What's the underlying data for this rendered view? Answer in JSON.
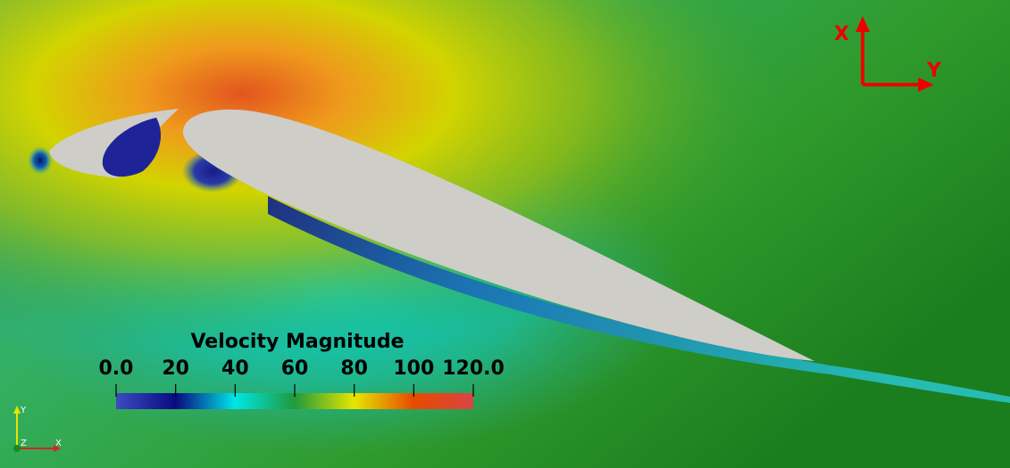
{
  "axes": {
    "x_label": "X",
    "y_label": "Y",
    "color": "#ee0000"
  },
  "legend": {
    "title": "Velocity Magnitude",
    "min": 0,
    "max": 120,
    "ticks": [
      {
        "value": 0,
        "label": "0.0"
      },
      {
        "value": 20,
        "label": "20"
      },
      {
        "value": 40,
        "label": "40"
      },
      {
        "value": 60,
        "label": "60"
      },
      {
        "value": 80,
        "label": "80"
      },
      {
        "value": 100,
        "label": "100"
      },
      {
        "value": 120,
        "label": "120.0"
      }
    ],
    "colormap": [
      {
        "value": 0,
        "color": "#3b4cc0"
      },
      {
        "value": 20,
        "color": "#0a0a80"
      },
      {
        "value": 40,
        "color": "#00e6e6"
      },
      {
        "value": 60,
        "color": "#1f9a3c"
      },
      {
        "value": 80,
        "color": "#e6e600"
      },
      {
        "value": 100,
        "color": "#e64a00"
      },
      {
        "value": 120,
        "color": "#d94444"
      }
    ]
  },
  "orientation_triad": {
    "x_label": "X",
    "y_label": "Y",
    "z_label": "Z"
  },
  "surface_color": "#cfcdc8"
}
